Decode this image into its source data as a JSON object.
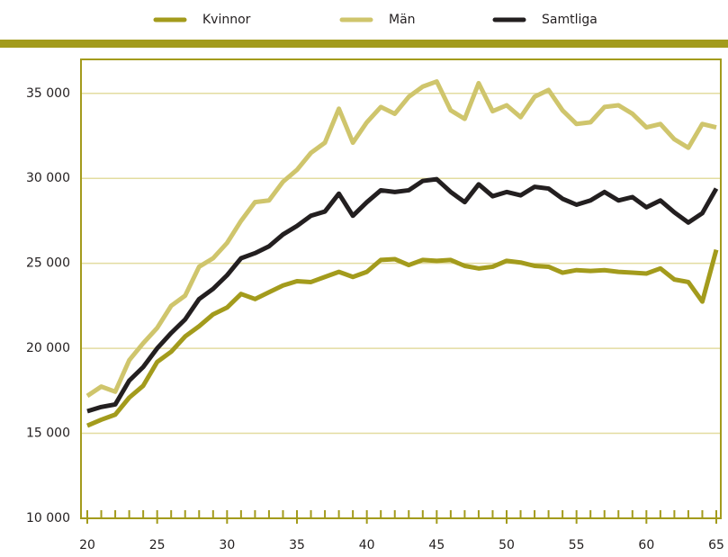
{
  "chart_data": {
    "type": "line",
    "x": [
      20,
      21,
      22,
      23,
      24,
      25,
      26,
      27,
      28,
      29,
      30,
      31,
      32,
      33,
      34,
      35,
      36,
      37,
      38,
      39,
      40,
      41,
      42,
      43,
      44,
      45,
      46,
      47,
      48,
      49,
      50,
      51,
      52,
      53,
      54,
      55,
      56,
      57,
      58,
      59,
      60,
      61,
      62,
      63,
      64,
      65
    ],
    "series": [
      {
        "name": "Kvinnor",
        "color": "#a39b1c",
        "values": [
          15450,
          15800,
          16100,
          17100,
          17800,
          19200,
          19800,
          20700,
          21300,
          22000,
          22400,
          23200,
          22900,
          23300,
          23700,
          23950,
          23900,
          24200,
          24500,
          24200,
          24500,
          25200,
          25250,
          24900,
          25200,
          25150,
          25200,
          24850,
          24700,
          24800,
          25150,
          25050,
          24850,
          24800,
          24450,
          24600,
          24550,
          24600,
          24500,
          24450,
          24400,
          24700,
          24050,
          23900,
          22750,
          25800
        ]
      },
      {
        "name": "Män",
        "color": "#cfc56c",
        "values": [
          17200,
          17750,
          17450,
          19300,
          20300,
          21200,
          22500,
          23100,
          24800,
          25300,
          26200,
          27500,
          28600,
          28700,
          29800,
          30500,
          31500,
          32100,
          34100,
          32100,
          33300,
          34200,
          33800,
          34800,
          35400,
          35700,
          34000,
          33500,
          35600,
          33950,
          34300,
          33600,
          34800,
          35200,
          34000,
          33200,
          33300,
          34200,
          34300,
          33800,
          33000,
          33200,
          32300,
          31800,
          33200,
          33000
        ]
      },
      {
        "name": "Samtliga",
        "color": "#231f20",
        "values": [
          16300,
          16550,
          16700,
          18100,
          18900,
          20000,
          20900,
          21700,
          22900,
          23500,
          24300,
          25300,
          25600,
          26000,
          26700,
          27200,
          27800,
          28050,
          29100,
          27800,
          28600,
          29300,
          29200,
          29300,
          29850,
          29950,
          29200,
          28600,
          29650,
          28950,
          29200,
          29000,
          29500,
          29400,
          28800,
          28450,
          28700,
          29200,
          28700,
          28900,
          28300,
          28700,
          28000,
          27400,
          27950,
          29400
        ]
      }
    ],
    "xlim": [
      20,
      65
    ],
    "xticks": [
      20,
      25,
      30,
      35,
      40,
      45,
      50,
      55,
      60,
      65
    ],
    "ylim": [
      10000,
      37000
    ],
    "yticks": [
      {
        "value": 10000,
        "label": "10 000"
      },
      {
        "value": 15000,
        "label": "15 000"
      },
      {
        "value": 20000,
        "label": "20 000"
      },
      {
        "value": 25000,
        "label": "25 000"
      },
      {
        "value": 30000,
        "label": "30 000"
      },
      {
        "value": 35000,
        "label": "35 000"
      }
    ],
    "grid": true,
    "legend": "top"
  }
}
